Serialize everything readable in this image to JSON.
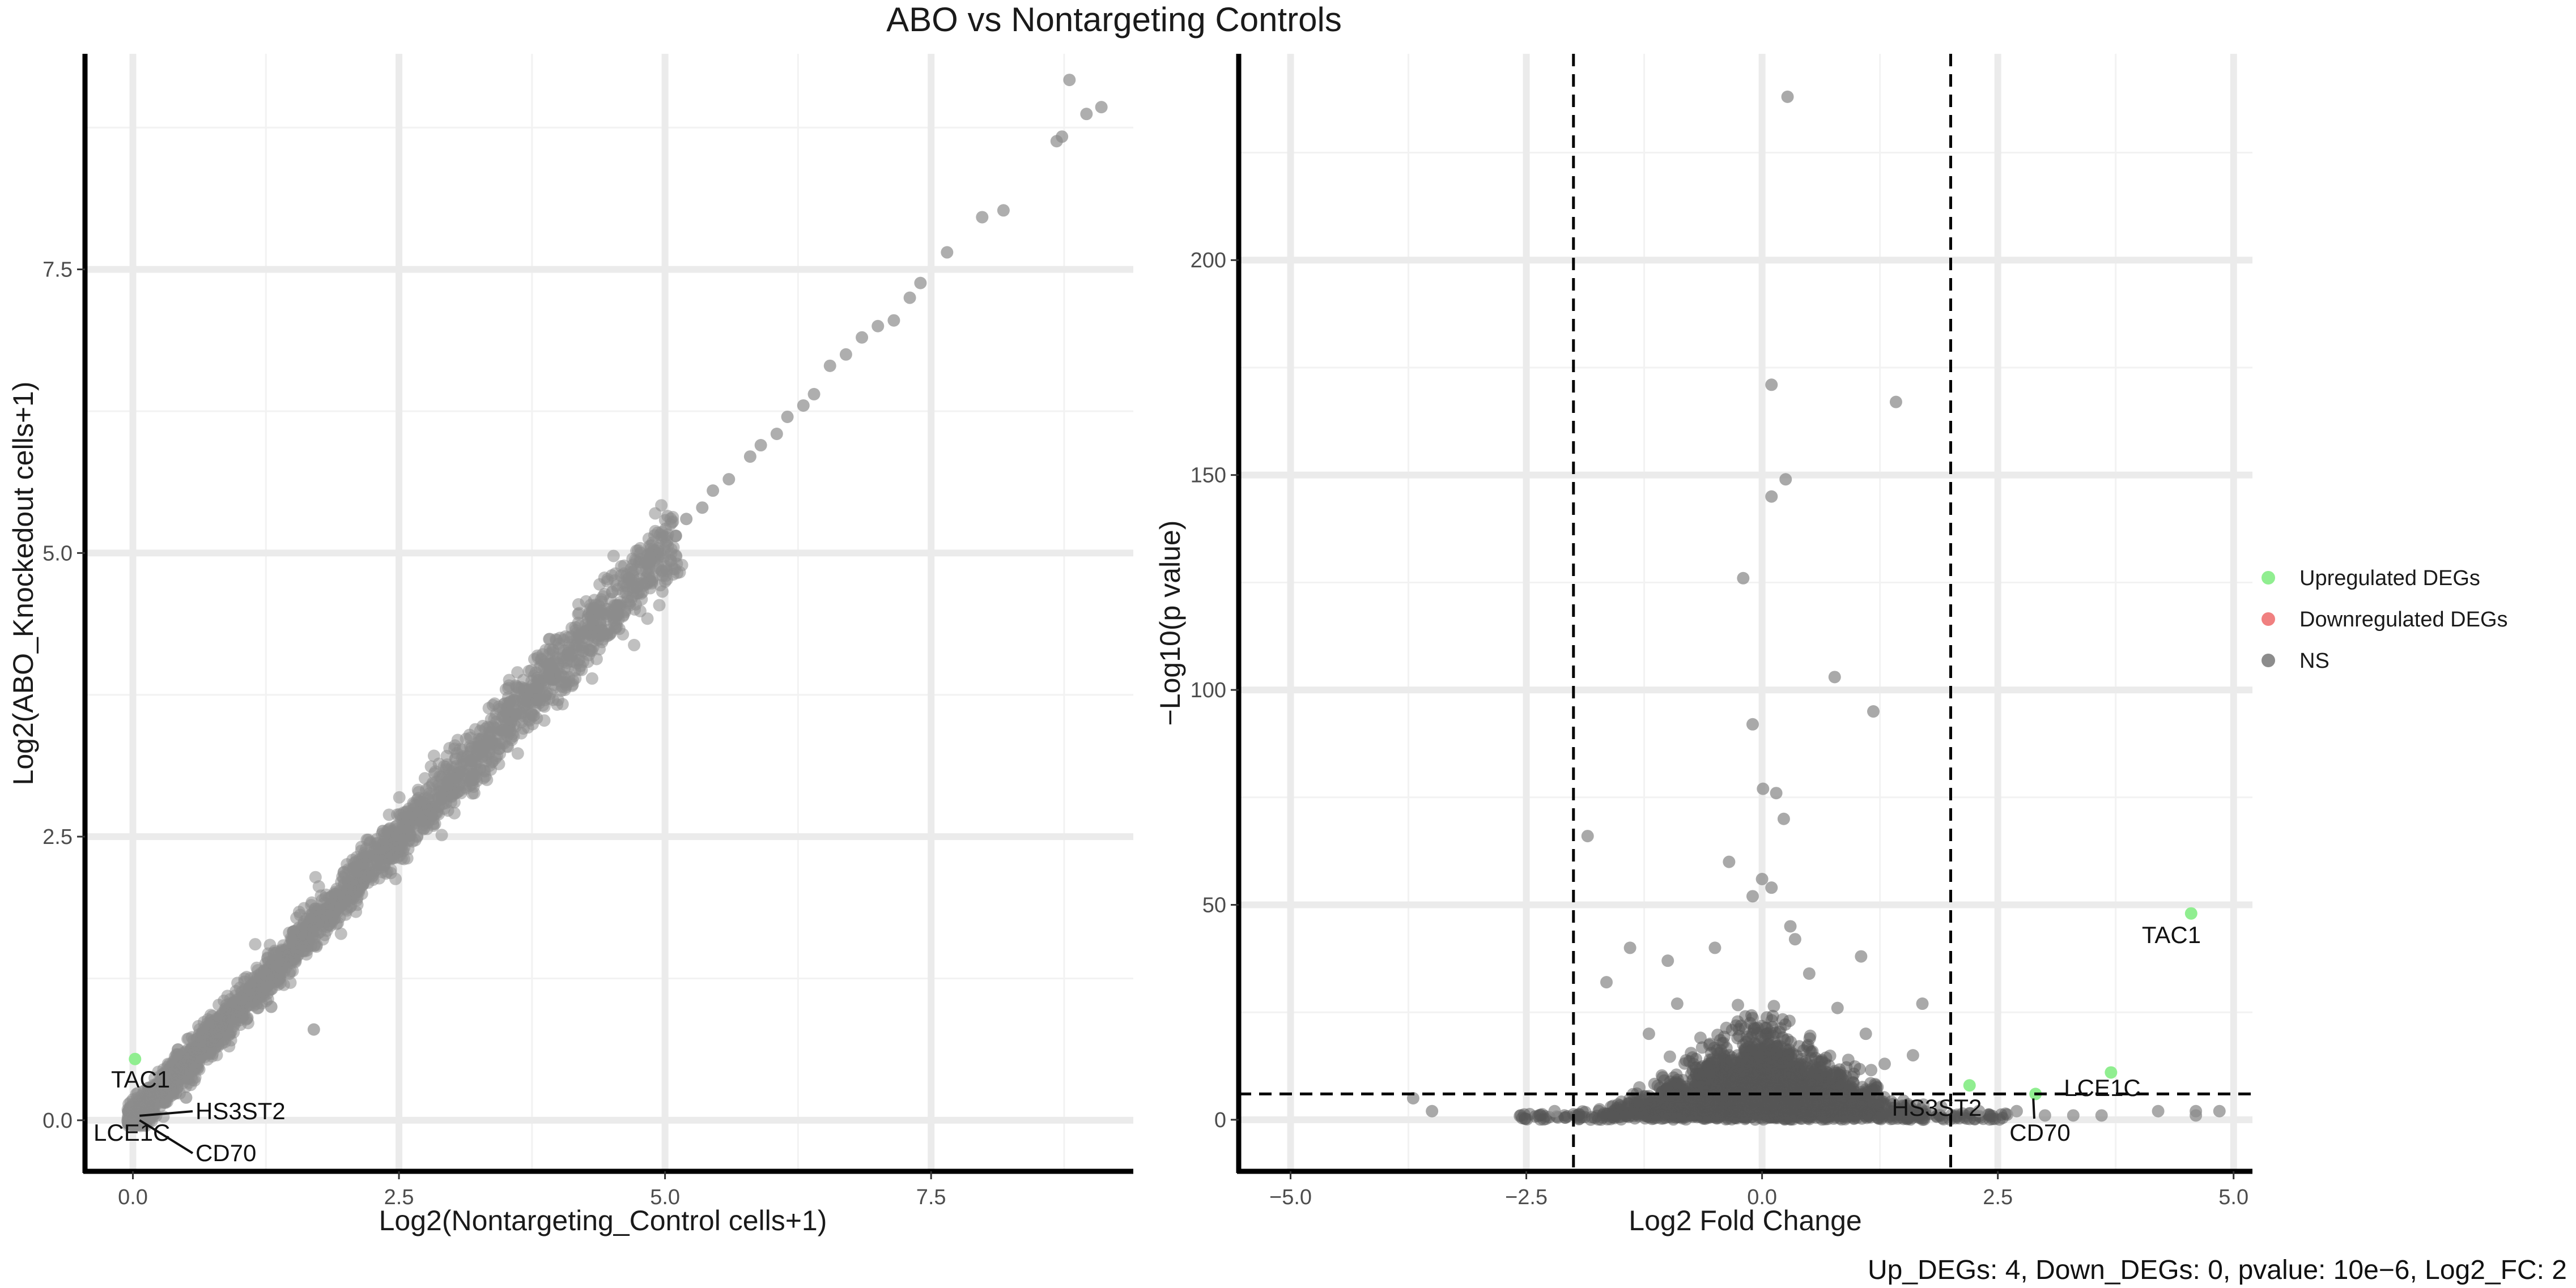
{
  "title": "ABO  vs Nontargeting Controls",
  "footer": "Up_DEGs: 4, Down_DEGs: 0, pvalue: 10e−6, Log2_FC: 2",
  "legend": {
    "placement": "right",
    "items": [
      {
        "label": "Upregulated DEGs",
        "color": "#90ee90"
      },
      {
        "label": "Downregulated DEGs",
        "color": "#f08080"
      },
      {
        "label": "NS",
        "color": "#8c8c8c"
      }
    ]
  },
  "chart_data": [
    {
      "type": "scatter",
      "xlabel": "Log2(Nontargeting_Control cells+1)",
      "ylabel": "Log2(ABO_Knockedout cells+1)",
      "xlim": [
        -0.45,
        9.4
      ],
      "ylim": [
        -0.45,
        9.4
      ],
      "xticks": [
        0.0,
        2.5,
        5.0,
        7.5
      ],
      "yticks": [
        0.0,
        2.5,
        5.0,
        7.5
      ],
      "tick_labels": [
        "0.0",
        "2.5",
        "5.0",
        "7.5"
      ],
      "grid": true,
      "points_ns": [
        [
          7.65,
          7.65
        ],
        [
          7.98,
          7.96
        ],
        [
          8.18,
          8.02
        ],
        [
          8.68,
          8.63
        ],
        [
          8.73,
          8.67
        ],
        [
          8.8,
          9.17
        ],
        [
          8.96,
          8.87
        ],
        [
          9.1,
          8.93
        ],
        [
          7.4,
          7.38
        ],
        [
          7.3,
          7.25
        ],
        [
          7.15,
          7.05
        ],
        [
          7.0,
          7.0
        ],
        [
          6.85,
          6.9
        ],
        [
          6.7,
          6.75
        ],
        [
          6.55,
          6.65
        ],
        [
          6.4,
          6.4
        ],
        [
          6.3,
          6.3
        ],
        [
          6.15,
          6.2
        ],
        [
          6.05,
          6.05
        ],
        [
          5.9,
          5.95
        ],
        [
          5.8,
          5.85
        ],
        [
          5.6,
          5.65
        ],
        [
          5.45,
          5.55
        ],
        [
          5.35,
          5.4
        ],
        [
          5.2,
          5.3
        ],
        [
          5.1,
          5.15
        ],
        [
          1.7,
          0.8
        ],
        [
          2.8,
          2.7
        ],
        [
          2.35,
          2.55
        ],
        [
          3.8,
          3.9
        ],
        [
          4.0,
          4.2
        ],
        [
          3.2,
          3.0
        ],
        [
          0.5,
          0.2
        ],
        [
          1.3,
          1.0
        ]
      ],
      "points_highlight": [
        {
          "x": 0.02,
          "y": 0.54,
          "label": "TAC1",
          "class": "up"
        }
      ],
      "labels": [
        {
          "gene": "TAC1",
          "x": 0.02,
          "y": 0.54
        },
        {
          "gene": "HS3ST2",
          "x": 0.02,
          "y": 0.02
        },
        {
          "gene": "LCE1C",
          "x": 0.02,
          "y": 0.02
        },
        {
          "gene": "CD70",
          "x": 0.02,
          "y": 0.02
        }
      ]
    },
    {
      "type": "scatter",
      "xlabel": "Log2 Fold Change",
      "ylabel": "−Log10(p value)",
      "xlim": [
        -5.55,
        5.2
      ],
      "ylim": [
        -12,
        248
      ],
      "xticks": [
        -5.0,
        -2.5,
        0.0,
        2.5,
        5.0
      ],
      "yticks": [
        0,
        50,
        100,
        150,
        200
      ],
      "xtick_labels": [
        "−5.0",
        "−2.5",
        "0.0",
        "2.5",
        "5.0"
      ],
      "ytick_labels": [
        "0",
        "50",
        "100",
        "150",
        "200"
      ],
      "grid": true,
      "thresholds": {
        "fc": [
          -2,
          2
        ],
        "pvalue_line": 6
      },
      "points_ns": [
        [
          0.27,
          238
        ],
        [
          0.1,
          171
        ],
        [
          1.42,
          167
        ],
        [
          0.1,
          145
        ],
        [
          0.25,
          149
        ],
        [
          -0.2,
          126
        ],
        [
          0.77,
          103
        ],
        [
          -0.1,
          92
        ],
        [
          1.18,
          95
        ],
        [
          0.01,
          77
        ],
        [
          0.15,
          76
        ],
        [
          0.23,
          70
        ],
        [
          -1.85,
          66
        ],
        [
          -0.35,
          60
        ],
        [
          0.0,
          56
        ],
        [
          0.1,
          54
        ],
        [
          -0.1,
          52
        ],
        [
          0.3,
          45
        ],
        [
          -3.7,
          5
        ],
        [
          -3.5,
          2
        ],
        [
          -1.4,
          40
        ],
        [
          -1.65,
          32
        ],
        [
          -1.0,
          37
        ],
        [
          0.5,
          34
        ],
        [
          0.8,
          26
        ],
        [
          1.6,
          15
        ],
        [
          1.7,
          27
        ],
        [
          1.3,
          13
        ],
        [
          1.1,
          20
        ],
        [
          -0.9,
          27
        ],
        [
          -1.2,
          20
        ],
        [
          -0.5,
          40
        ],
        [
          0.35,
          42
        ],
        [
          1.05,
          38
        ],
        [
          -2.2,
          2
        ],
        [
          3.0,
          1
        ],
        [
          3.3,
          1
        ],
        [
          3.6,
          1
        ],
        [
          4.2,
          2
        ],
        [
          4.6,
          1
        ],
        [
          4.6,
          2
        ],
        [
          4.85,
          2
        ],
        [
          2.7,
          2
        ],
        [
          1.9,
          3
        ],
        [
          2.3,
          2
        ]
      ],
      "points_highlight": [
        {
          "x": 4.55,
          "y": 48,
          "label": "TAC1",
          "class": "up"
        },
        {
          "x": 3.7,
          "y": 11,
          "label": "LCE1C",
          "class": "up"
        },
        {
          "x": 2.2,
          "y": 8,
          "label": "HS3ST2",
          "class": "up"
        },
        {
          "x": 2.9,
          "y": 6,
          "label": "CD70",
          "class": "up"
        }
      ],
      "labels": [
        {
          "gene": "TAC1",
          "x": 4.55,
          "y": 48
        },
        {
          "gene": "LCE1C",
          "x": 3.7,
          "y": 11
        },
        {
          "gene": "HS3ST2",
          "x": 2.2,
          "y": 8
        },
        {
          "gene": "CD70",
          "x": 2.9,
          "y": 6
        }
      ]
    }
  ]
}
